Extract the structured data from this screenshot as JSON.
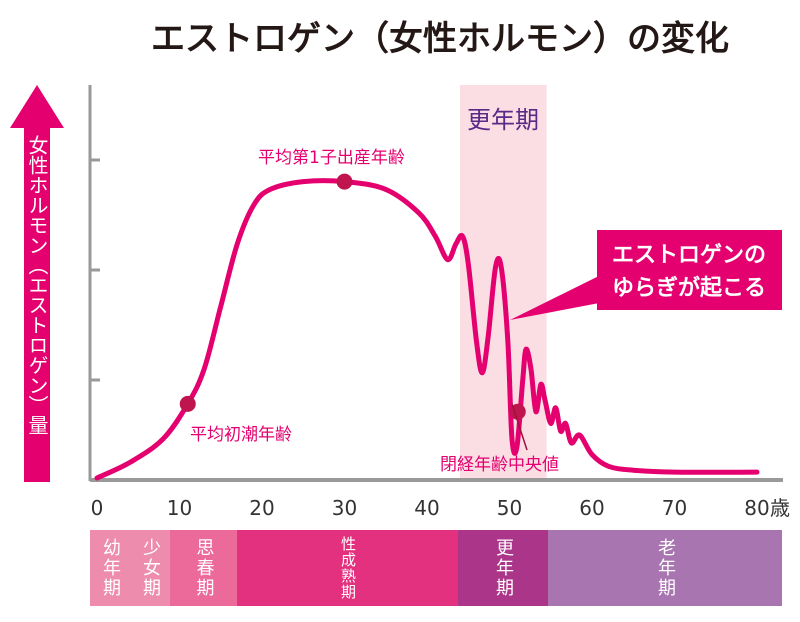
{
  "chart_data": {
    "type": "line",
    "title": "エストロゲン（女性ホルモン）の変化",
    "ylabel": "女性ホルモン（エストロゲン）量",
    "xlabel_unit": "歳",
    "xlim": [
      0,
      82
    ],
    "x_ticks": [
      "0",
      "10",
      "20",
      "30",
      "40",
      "50",
      "60",
      "70",
      "80"
    ],
    "y_ticks_count": 3,
    "y_tick_labels": false,
    "colors": {
      "curve": "#e4006e",
      "marker": "#c0144f",
      "band": "#fbdde4",
      "title": "#231815",
      "band_label": "#5a2a86",
      "callout": "#e4006e"
    },
    "series": [
      {
        "x": [
          0,
          4,
          8,
          11,
          13,
          15,
          17,
          19,
          21,
          25,
          30,
          35,
          39,
          41,
          42.5,
          43.5,
          44.3,
          45,
          46,
          46.7,
          47.4,
          48.3,
          49,
          49.8,
          50.3,
          50.9,
          51.6,
          52,
          52.6,
          53.2,
          53.8,
          54.3,
          55,
          55.6,
          56.2,
          56.8,
          57.5,
          58.5,
          60,
          62,
          65,
          70,
          80
        ],
        "y": [
          0,
          4,
          10,
          19,
          28,
          44,
          60,
          70,
          74,
          76,
          76,
          74,
          68,
          62,
          56,
          60,
          62,
          55,
          35,
          27,
          36,
          54,
          54,
          35,
          10,
          8,
          25,
          33,
          28,
          17,
          24,
          20,
          14,
          18,
          12,
          14,
          9,
          11,
          6,
          3,
          2,
          1.5,
          1.5
        ]
      }
    ],
    "markers": [
      {
        "label": "平均初潮年齢",
        "x": 11,
        "y": 19
      },
      {
        "label": "平均第1子出産年齢",
        "x": 30,
        "y": 76
      },
      {
        "label": "閉経年齢中央値",
        "x": 51,
        "y": 17
      }
    ],
    "highlight_band": {
      "label": "更年期",
      "x_range": [
        44,
        54.5
      ]
    },
    "callout": {
      "lines": [
        "エストロゲンの",
        "ゆらぎが起こる"
      ]
    },
    "life_stages": [
      {
        "label": "幼年期",
        "color": "#ee8cae"
      },
      {
        "label": "少女期",
        "color": "#ee8cae"
      },
      {
        "label": "思春期",
        "color": "#ec6a9a"
      },
      {
        "label": "性成熟期",
        "color": "#e4317f"
      },
      {
        "label": "更年期",
        "color": "#aa3589"
      },
      {
        "label": "老年期",
        "color": "#a875b0"
      }
    ]
  }
}
